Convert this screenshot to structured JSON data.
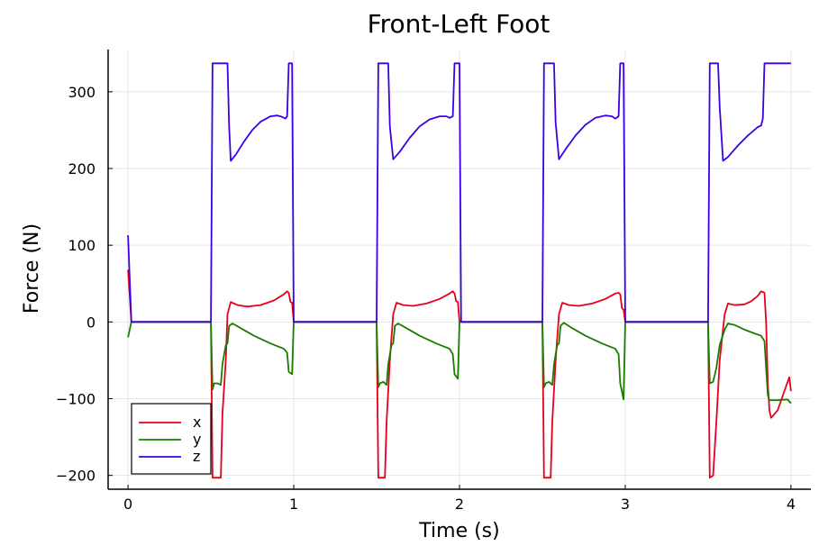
{
  "chart_data": {
    "type": "line",
    "title": "Front-Left Foot",
    "xlabel": "Time (s)",
    "ylabel": "Force (N)",
    "xlim": [
      -0.12,
      4.12
    ],
    "ylim": [
      -218,
      355
    ],
    "x_ticks": [
      0,
      1,
      2,
      3,
      4
    ],
    "x_tick_labels": [
      "0",
      "1",
      "2",
      "3",
      "4"
    ],
    "y_ticks": [
      -200,
      -100,
      0,
      100,
      200,
      300
    ],
    "y_tick_labels": [
      "−200",
      "−100",
      "0",
      "100",
      "200",
      "300"
    ],
    "grid": true,
    "legend_position": "bottom-left",
    "series": [
      {
        "name": "x",
        "color": "#e6001a",
        "points": [
          [
            0.0,
            68
          ],
          [
            0.02,
            0
          ],
          [
            0.5,
            0
          ],
          [
            0.51,
            -203
          ],
          [
            0.56,
            -203
          ],
          [
            0.57,
            -120
          ],
          [
            0.59,
            -50
          ],
          [
            0.6,
            10
          ],
          [
            0.62,
            26
          ],
          [
            0.66,
            22
          ],
          [
            0.72,
            20
          ],
          [
            0.8,
            22
          ],
          [
            0.88,
            28
          ],
          [
            0.94,
            36
          ],
          [
            0.96,
            40
          ],
          [
            0.97,
            38
          ],
          [
            0.98,
            26
          ],
          [
            0.99,
            25
          ],
          [
            1.0,
            0
          ],
          [
            1.5,
            0
          ],
          [
            1.51,
            -203
          ],
          [
            1.55,
            -203
          ],
          [
            1.56,
            -130
          ],
          [
            1.58,
            -50
          ],
          [
            1.6,
            10
          ],
          [
            1.62,
            25
          ],
          [
            1.66,
            22
          ],
          [
            1.72,
            21
          ],
          [
            1.8,
            24
          ],
          [
            1.88,
            30
          ],
          [
            1.94,
            37
          ],
          [
            1.96,
            40
          ],
          [
            1.97,
            37
          ],
          [
            1.98,
            27
          ],
          [
            1.99,
            26
          ],
          [
            2.0,
            0
          ],
          [
            2.5,
            0
          ],
          [
            2.51,
            -203
          ],
          [
            2.55,
            -203
          ],
          [
            2.56,
            -130
          ],
          [
            2.58,
            -50
          ],
          [
            2.6,
            10
          ],
          [
            2.62,
            25
          ],
          [
            2.66,
            22
          ],
          [
            2.72,
            21
          ],
          [
            2.8,
            24
          ],
          [
            2.88,
            30
          ],
          [
            2.94,
            37
          ],
          [
            2.96,
            38
          ],
          [
            2.97,
            36
          ],
          [
            2.98,
            18
          ],
          [
            2.99,
            16
          ],
          [
            3.0,
            0
          ],
          [
            3.5,
            0
          ],
          [
            3.51,
            -203
          ],
          [
            3.53,
            -200
          ],
          [
            3.55,
            -130
          ],
          [
            3.57,
            -50
          ],
          [
            3.6,
            10
          ],
          [
            3.62,
            24
          ],
          [
            3.66,
            22
          ],
          [
            3.72,
            23
          ],
          [
            3.76,
            27
          ],
          [
            3.8,
            34
          ],
          [
            3.82,
            40
          ],
          [
            3.84,
            38
          ],
          [
            3.85,
            0
          ],
          [
            3.86,
            -80
          ],
          [
            3.87,
            -115
          ],
          [
            3.88,
            -125
          ],
          [
            3.92,
            -115
          ],
          [
            3.96,
            -90
          ],
          [
            3.99,
            -72
          ],
          [
            4.0,
            -90
          ]
        ]
      },
      {
        "name": "y",
        "color": "#1a7d00",
        "points": [
          [
            0.0,
            -20
          ],
          [
            0.02,
            0
          ],
          [
            0.5,
            0
          ],
          [
            0.51,
            -88
          ],
          [
            0.52,
            -80
          ],
          [
            0.54,
            -80
          ],
          [
            0.56,
            -82
          ],
          [
            0.57,
            -55
          ],
          [
            0.59,
            -30
          ],
          [
            0.6,
            -28
          ],
          [
            0.61,
            -5
          ],
          [
            0.63,
            -2
          ],
          [
            0.68,
            -8
          ],
          [
            0.76,
            -18
          ],
          [
            0.86,
            -28
          ],
          [
            0.94,
            -35
          ],
          [
            0.96,
            -40
          ],
          [
            0.97,
            -65
          ],
          [
            0.99,
            -68
          ],
          [
            1.0,
            0
          ],
          [
            1.5,
            0
          ],
          [
            1.51,
            -85
          ],
          [
            1.52,
            -80
          ],
          [
            1.54,
            -78
          ],
          [
            1.56,
            -82
          ],
          [
            1.57,
            -55
          ],
          [
            1.59,
            -30
          ],
          [
            1.6,
            -28
          ],
          [
            1.61,
            -5
          ],
          [
            1.63,
            -2
          ],
          [
            1.68,
            -8
          ],
          [
            1.76,
            -18
          ],
          [
            1.86,
            -28
          ],
          [
            1.94,
            -35
          ],
          [
            1.96,
            -42
          ],
          [
            1.97,
            -68
          ],
          [
            1.99,
            -74
          ],
          [
            2.0,
            0
          ],
          [
            2.5,
            0
          ],
          [
            2.51,
            -85
          ],
          [
            2.52,
            -80
          ],
          [
            2.54,
            -78
          ],
          [
            2.56,
            -82
          ],
          [
            2.57,
            -55
          ],
          [
            2.59,
            -30
          ],
          [
            2.6,
            -28
          ],
          [
            2.61,
            -5
          ],
          [
            2.63,
            -1
          ],
          [
            2.68,
            -8
          ],
          [
            2.76,
            -18
          ],
          [
            2.86,
            -28
          ],
          [
            2.94,
            -35
          ],
          [
            2.96,
            -42
          ],
          [
            2.97,
            -80
          ],
          [
            2.99,
            -101
          ],
          [
            3.0,
            0
          ],
          [
            3.5,
            0
          ],
          [
            3.51,
            -80
          ],
          [
            3.53,
            -78
          ],
          [
            3.55,
            -60
          ],
          [
            3.57,
            -30
          ],
          [
            3.6,
            -10
          ],
          [
            3.62,
            -2
          ],
          [
            3.66,
            -4
          ],
          [
            3.72,
            -10
          ],
          [
            3.78,
            -15
          ],
          [
            3.82,
            -18
          ],
          [
            3.84,
            -25
          ],
          [
            3.85,
            -60
          ],
          [
            3.86,
            -95
          ],
          [
            3.87,
            -102
          ],
          [
            3.92,
            -102
          ],
          [
            3.98,
            -101
          ],
          [
            4.0,
            -106
          ]
        ]
      },
      {
        "name": "z",
        "color": "#3b00e6",
        "points": [
          [
            0.0,
            113
          ],
          [
            0.02,
            0
          ],
          [
            0.5,
            0
          ],
          [
            0.51,
            337
          ],
          [
            0.6,
            337
          ],
          [
            0.61,
            255
          ],
          [
            0.62,
            210
          ],
          [
            0.65,
            218
          ],
          [
            0.7,
            235
          ],
          [
            0.75,
            250
          ],
          [
            0.8,
            261
          ],
          [
            0.86,
            268
          ],
          [
            0.9,
            269
          ],
          [
            0.92,
            268
          ],
          [
            0.95,
            265
          ],
          [
            0.96,
            268
          ],
          [
            0.97,
            337
          ],
          [
            0.99,
            337
          ],
          [
            1.0,
            0
          ],
          [
            1.5,
            0
          ],
          [
            1.51,
            337
          ],
          [
            1.57,
            337
          ],
          [
            1.58,
            255
          ],
          [
            1.6,
            212
          ],
          [
            1.64,
            222
          ],
          [
            1.7,
            240
          ],
          [
            1.76,
            255
          ],
          [
            1.82,
            264
          ],
          [
            1.88,
            268
          ],
          [
            1.92,
            268
          ],
          [
            1.94,
            266
          ],
          [
            1.96,
            268
          ],
          [
            1.97,
            337
          ],
          [
            2.0,
            337
          ],
          [
            2.01,
            0
          ],
          [
            2.5,
            0
          ],
          [
            2.51,
            337
          ],
          [
            2.57,
            337
          ],
          [
            2.58,
            260
          ],
          [
            2.6,
            212
          ],
          [
            2.64,
            225
          ],
          [
            2.7,
            243
          ],
          [
            2.76,
            257
          ],
          [
            2.82,
            266
          ],
          [
            2.88,
            269
          ],
          [
            2.92,
            268
          ],
          [
            2.94,
            265
          ],
          [
            2.96,
            268
          ],
          [
            2.97,
            337
          ],
          [
            2.99,
            337
          ],
          [
            3.0,
            0
          ],
          [
            3.5,
            0
          ],
          [
            3.51,
            337
          ],
          [
            3.56,
            337
          ],
          [
            3.57,
            280
          ],
          [
            3.59,
            210
          ],
          [
            3.62,
            215
          ],
          [
            3.68,
            230
          ],
          [
            3.74,
            243
          ],
          [
            3.8,
            254
          ],
          [
            3.82,
            256
          ],
          [
            3.83,
            265
          ],
          [
            3.84,
            337
          ],
          [
            4.0,
            337
          ]
        ]
      }
    ]
  }
}
